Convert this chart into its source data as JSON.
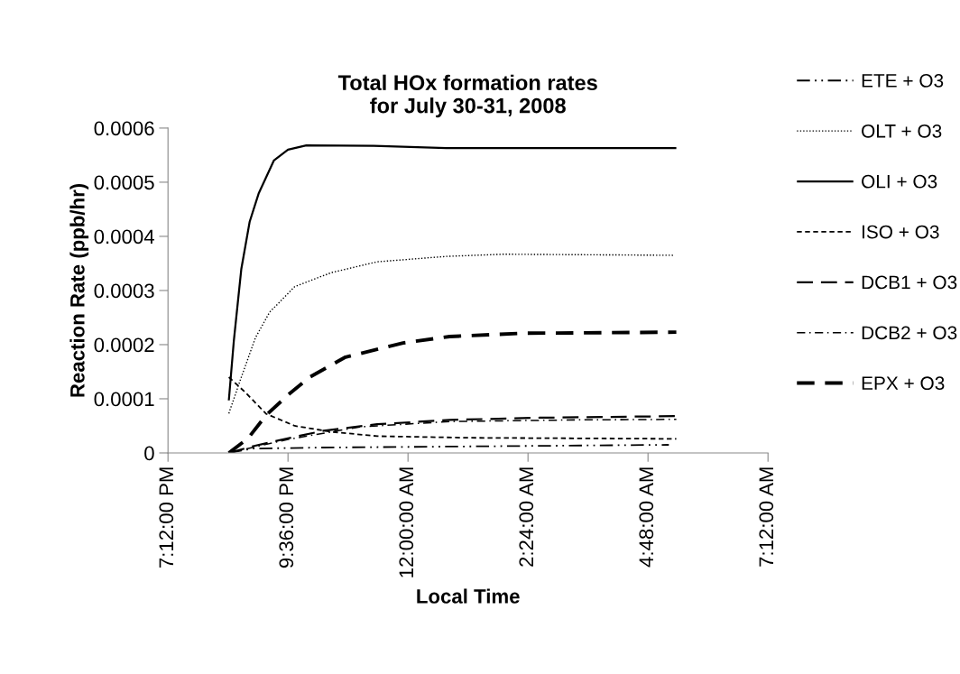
{
  "chart_data": {
    "type": "line",
    "title": "Total HOx formation rates\nfor July 30-31, 2008",
    "xlabel": "Local Time",
    "ylabel": "Reaction Rate (ppb/hr)",
    "xlim": [
      "2008-07-30T19:12",
      "2008-07-31T07:12"
    ],
    "xticks": [
      {
        "value": "2008-07-30T19:12",
        "label": "7:12:00 PM"
      },
      {
        "value": "2008-07-30T21:36",
        "label": "9:36:00 PM"
      },
      {
        "value": "2008-07-31T00:00",
        "label": "12:00:00 AM"
      },
      {
        "value": "2008-07-31T02:24",
        "label": "2:24:00 AM"
      },
      {
        "value": "2008-07-31T04:48",
        "label": "4:48:00 AM"
      },
      {
        "value": "2008-07-31T07:12",
        "label": "7:12:00 AM"
      }
    ],
    "ylim": [
      0,
      0.0006
    ],
    "yticks": [
      0,
      0.0001,
      0.0002,
      0.0003,
      0.0004,
      0.0005,
      0.0006
    ],
    "grid": false,
    "legend": "right",
    "marker": "none",
    "series": [
      {
        "name": "ETE + O3",
        "color": "#000000",
        "line_style": "dash-dot-dot",
        "x": [
          "2008-07-30T20:25",
          "2008-07-30T20:53",
          "2008-07-30T22:19",
          "2008-07-31T01:11",
          "2008-07-31T05:13"
        ],
        "values": [
          0,
          8e-06,
          1e-05,
          1.2e-05,
          1.5e-05
        ]
      },
      {
        "name": "OLT + O3",
        "color": "#000000",
        "line_style": "dotted",
        "x": [
          "2008-07-30T20:25",
          "2008-07-30T20:40",
          "2008-07-30T20:57",
          "2008-07-30T21:14",
          "2008-07-30T21:44",
          "2008-07-30T22:28",
          "2008-07-30T23:23",
          "2008-07-31T00:46",
          "2008-07-31T01:55",
          "2008-07-31T05:20"
        ],
        "values": [
          7.3e-05,
          0.00014,
          0.000213,
          0.00026,
          0.000307,
          0.000333,
          0.000353,
          0.000363,
          0.000367,
          0.000365
        ]
      },
      {
        "name": "OLI + O3",
        "color": "#000000",
        "line_style": "solid",
        "x": [
          "2008-07-30T20:25",
          "2008-07-30T20:31",
          "2008-07-30T20:40",
          "2008-07-30T20:50",
          "2008-07-30T21:01",
          "2008-07-30T21:19",
          "2008-07-30T21:36",
          "2008-07-30T21:58",
          "2008-07-30T23:19",
          "2008-07-31T00:46",
          "2008-07-31T05:22"
        ],
        "values": [
          9.7e-05,
          0.000207,
          0.00034,
          0.000427,
          0.00048,
          0.00054,
          0.00056,
          0.000568,
          0.000567,
          0.000563,
          0.000563
        ]
      },
      {
        "name": "ISO + O3",
        "color": "#000000",
        "line_style": "dashed",
        "x": [
          "2008-07-30T20:25",
          "2008-07-30T20:44",
          "2008-07-30T21:10",
          "2008-07-30T21:44",
          "2008-07-30T22:28",
          "2008-07-30T23:23",
          "2008-07-31T01:11",
          "2008-07-31T05:22"
        ],
        "values": [
          0.00014,
          0.000113,
          7.2e-05,
          5e-05,
          3.9e-05,
          3.1e-05,
          2.8e-05,
          2.6e-05
        ]
      },
      {
        "name": "DCB1 + O3",
        "color": "#000000",
        "line_style": "long-dashed",
        "x": [
          "2008-07-30T20:25",
          "2008-07-30T20:53",
          "2008-07-30T21:36",
          "2008-07-30T22:19",
          "2008-07-30T23:23",
          "2008-07-31T00:50",
          "2008-07-31T02:38",
          "2008-07-31T05:22"
        ],
        "values": [
          0,
          1.2e-05,
          2.7e-05,
          4.1e-05,
          5.3e-05,
          6.1e-05,
          6.5e-05,
          6.8e-05
        ]
      },
      {
        "name": "DCB2 + O3",
        "color": "#000000",
        "line_style": "dash-dot",
        "x": [
          "2008-07-30T20:25",
          "2008-07-30T21:36",
          "2008-07-30T23:02",
          "2008-07-31T00:50",
          "2008-07-31T03:21",
          "2008-07-31T05:22"
        ],
        "values": [
          0,
          2.5e-05,
          4.8e-05,
          5.8e-05,
          6.1e-05,
          6.2e-05
        ]
      },
      {
        "name": "EPX + O3",
        "color": "#000000",
        "line_style": "bold-dashed",
        "x": [
          "2008-07-30T20:25",
          "2008-07-30T20:48",
          "2008-07-30T21:10",
          "2008-07-30T21:36",
          "2008-07-30T22:02",
          "2008-07-30T22:45",
          "2008-07-30T23:54",
          "2008-07-31T00:50",
          "2008-07-31T02:16",
          "2008-07-31T05:22"
        ],
        "values": [
          0,
          2.7e-05,
          7e-05,
          0.000107,
          0.00014,
          0.000177,
          0.000203,
          0.000215,
          0.000221,
          0.000223
        ]
      }
    ]
  }
}
